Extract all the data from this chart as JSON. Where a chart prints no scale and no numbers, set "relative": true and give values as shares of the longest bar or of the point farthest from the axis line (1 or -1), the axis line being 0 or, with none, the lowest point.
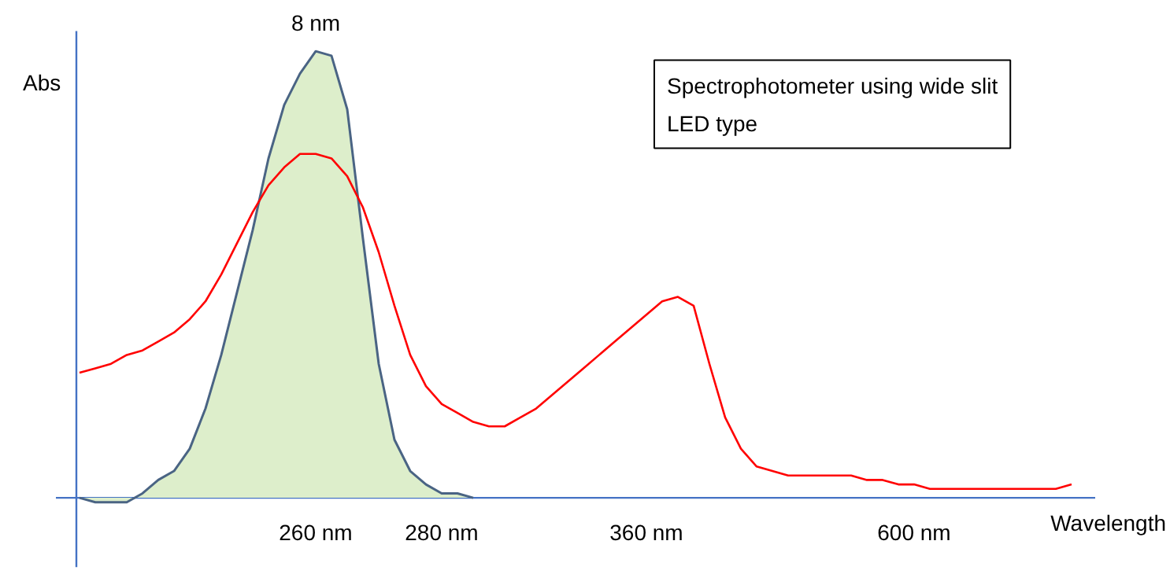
{
  "chart_data": {
    "type": "line",
    "relative": true,
    "xlabel": "Wavelength",
    "ylabel": "Abs",
    "categories": [
      null,
      null,
      null,
      null,
      null,
      null,
      null,
      null,
      null,
      null,
      null,
      null,
      null,
      null,
      null,
      "260 nm",
      null,
      null,
      null,
      null,
      null,
      null,
      null,
      "280 nm",
      null,
      null,
      null,
      null,
      null,
      null,
      null,
      null,
      null,
      null,
      null,
      null,
      "360 nm",
      null,
      null,
      null,
      null,
      null,
      null,
      null,
      null,
      null,
      null,
      null,
      null,
      null,
      null,
      null,
      null,
      "600 nm",
      null,
      null,
      null,
      null,
      null,
      null,
      null,
      null,
      null,
      null,
      null
    ],
    "series": [
      {
        "type": "area",
        "color": "#ddeecb",
        "values": [
          0,
          -0.01,
          -0.01,
          -0.01,
          0.01,
          0.04,
          0.06,
          0.11,
          0.2,
          0.32,
          0.46,
          0.6,
          0.76,
          0.88,
          0.95,
          1,
          0.99,
          0.87,
          0.58,
          0.3,
          0.13,
          0.06,
          0.03,
          0.01,
          0.01,
          0,
          null,
          null,
          null,
          null,
          null,
          null,
          null,
          null,
          null,
          null,
          null,
          null,
          null,
          null,
          null,
          null,
          null,
          null,
          null,
          null,
          null,
          null,
          null,
          null,
          null,
          null,
          null,
          null,
          null,
          null,
          null,
          null,
          null,
          null,
          null,
          null,
          null,
          null,
          null
        ]
      },
      {
        "color": "#ff0000",
        "values": [
          0.28,
          0.29,
          0.3,
          0.32,
          0.33,
          0.35,
          0.37,
          0.4,
          0.44,
          0.5,
          0.57,
          0.64,
          0.7,
          0.74,
          0.77,
          0.77,
          0.76,
          0.72,
          0.65,
          0.55,
          0.43,
          0.32,
          0.25,
          0.21,
          0.19,
          0.17,
          0.16,
          0.16,
          0.18,
          0.2,
          0.23,
          0.26,
          0.29,
          0.32,
          0.35,
          0.38,
          0.41,
          0.44,
          0.45,
          0.43,
          0.3,
          0.18,
          0.11,
          0.07,
          0.06,
          0.05,
          0.05,
          0.05,
          0.05,
          0.05,
          0.04,
          0.04,
          0.03,
          0.03,
          0.02,
          0.02,
          0.02,
          0.02,
          0.02,
          0.02,
          0.02,
          0.02,
          0.02,
          0.03,
          null
        ]
      }
    ],
    "annotations": [
      "8 nm",
      "Spectrophotometer using wide slit\nLED type"
    ]
  }
}
